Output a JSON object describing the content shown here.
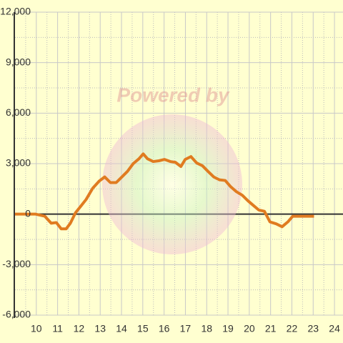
{
  "chart_data": {
    "type": "line",
    "watermark": "Powered by",
    "x": [
      9,
      9.97,
      10.4,
      10.7,
      10.94,
      11.17,
      11.4,
      11.6,
      11.84,
      12.08,
      12.34,
      12.65,
      12.95,
      13.21,
      13.48,
      13.75,
      14.02,
      14.28,
      14.55,
      14.82,
      15.02,
      15.22,
      15.49,
      15.76,
      16.02,
      16.29,
      16.53,
      16.79,
      16.99,
      17.26,
      17.53,
      17.8,
      18.06,
      18.33,
      18.6,
      18.87,
      19.13,
      19.4,
      19.67,
      19.94,
      20.17,
      20.44,
      20.71,
      20.97,
      21.27,
      21.54,
      21.81,
      22.04,
      22.34,
      23.04
    ],
    "series": [
      {
        "color": "#e07b20",
        "values": [
          0,
          0,
          -125,
          -540,
          -500,
          -875,
          -875,
          -540,
          80,
          460,
          875,
          1540,
          1960,
          2210,
          1875,
          1875,
          2210,
          2540,
          3000,
          3290,
          3580,
          3290,
          3125,
          3170,
          3250,
          3125,
          3080,
          2830,
          3250,
          3420,
          3040,
          2875,
          2540,
          2210,
          2040,
          2000,
          1625,
          1330,
          1125,
          790,
          540,
          250,
          170,
          -460,
          -580,
          -750,
          -460,
          -125,
          -125,
          -125
        ]
      }
    ],
    "xlim": [
      9,
      24.4
    ],
    "xticks": [
      10,
      11,
      12,
      13,
      14,
      15,
      16,
      17,
      18,
      19,
      20,
      21,
      22,
      23,
      24
    ],
    "ylim": [
      -6000,
      12000
    ],
    "yticks": [
      {
        "value": -6000,
        "label": "-6,000"
      },
      {
        "value": -3000,
        "label": "-3,000"
      },
      0,
      {
        "value": 3000,
        "label": "3,000"
      },
      {
        "value": 6000,
        "label": "6,000"
      },
      {
        "value": 9000,
        "label": "9,000"
      },
      {
        "value": 12000,
        "label": "12,000"
      }
    ],
    "grid": true
  }
}
